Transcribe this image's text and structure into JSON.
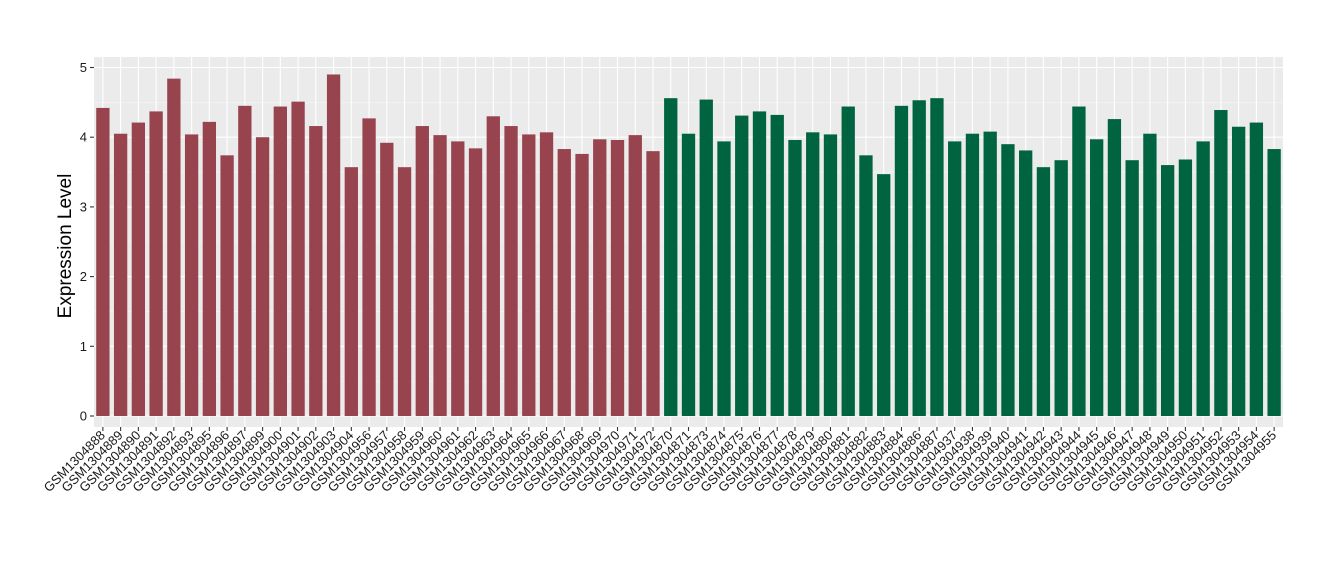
{
  "chart_data": {
    "type": "bar",
    "title": "",
    "xlabel": "",
    "ylabel": "Expression Level",
    "ylim": [
      0,
      5
    ],
    "yticks": [
      0,
      1,
      2,
      3,
      4,
      5
    ],
    "grid": true,
    "legend": "none",
    "background": "#EBEBEB",
    "colors": {
      "group1": "#98444F",
      "group2": "#006440"
    },
    "categories": [
      "GSM1304888",
      "GSM1304889",
      "GSM1304890",
      "GSM1304891",
      "GSM1304892",
      "GSM1304893",
      "GSM1304895",
      "GSM1304896",
      "GSM1304897",
      "GSM1304899",
      "GSM1304900",
      "GSM1304901",
      "GSM1304902",
      "GSM1304903",
      "GSM1304904",
      "GSM1304956",
      "GSM1304957",
      "GSM1304958",
      "GSM1304959",
      "GSM1304960",
      "GSM1304961",
      "GSM1304962",
      "GSM1304963",
      "GSM1304964",
      "GSM1304965",
      "GSM1304966",
      "GSM1304967",
      "GSM1304968",
      "GSM1304969",
      "GSM1304970",
      "GSM1304971",
      "GSM1304972",
      "GSM1304870",
      "GSM1304871",
      "GSM1304873",
      "GSM1304874",
      "GSM1304875",
      "GSM1304876",
      "GSM1304877",
      "GSM1304878",
      "GSM1304879",
      "GSM1304880",
      "GSM1304881",
      "GSM1304882",
      "GSM1304883",
      "GSM1304884",
      "GSM1304886",
      "GSM1304887",
      "GSM1304937",
      "GSM1304938",
      "GSM1304939",
      "GSM1304940",
      "GSM1304941",
      "GSM1304942",
      "GSM1304943",
      "GSM1304944",
      "GSM1304945",
      "GSM1304946",
      "GSM1304947",
      "GSM1304948",
      "GSM1304949",
      "GSM1304950",
      "GSM1304951",
      "GSM1304952",
      "GSM1304953",
      "GSM1304954",
      "GSM1304955"
    ],
    "values": [
      4.42,
      4.05,
      4.21,
      4.37,
      4.84,
      4.04,
      4.22,
      3.74,
      4.45,
      4.0,
      4.44,
      4.51,
      4.16,
      4.9,
      3.57,
      4.27,
      3.92,
      3.57,
      4.16,
      4.03,
      3.94,
      3.84,
      4.3,
      4.16,
      4.04,
      4.07,
      3.83,
      3.76,
      3.97,
      3.96,
      4.03,
      3.8,
      4.56,
      4.05,
      4.54,
      3.94,
      4.31,
      4.37,
      4.32,
      3.96,
      4.07,
      4.04,
      4.44,
      3.74,
      3.47,
      4.45,
      4.53,
      4.56,
      3.94,
      4.05,
      4.08,
      3.9,
      3.81,
      3.57,
      3.67,
      4.44,
      3.97,
      4.26,
      3.67,
      4.05,
      3.6,
      3.68,
      3.94,
      4.39,
      4.15,
      4.21,
      3.83
    ],
    "groups": [
      1,
      1,
      1,
      1,
      1,
      1,
      1,
      1,
      1,
      1,
      1,
      1,
      1,
      1,
      1,
      1,
      1,
      1,
      1,
      1,
      1,
      1,
      1,
      1,
      1,
      1,
      1,
      1,
      1,
      1,
      1,
      1,
      2,
      2,
      2,
      2,
      2,
      2,
      2,
      2,
      2,
      2,
      2,
      2,
      2,
      2,
      2,
      2,
      2,
      2,
      2,
      2,
      2,
      2,
      2,
      2,
      2,
      2,
      2,
      2,
      2,
      2,
      2,
      2,
      2,
      2,
      2
    ]
  }
}
